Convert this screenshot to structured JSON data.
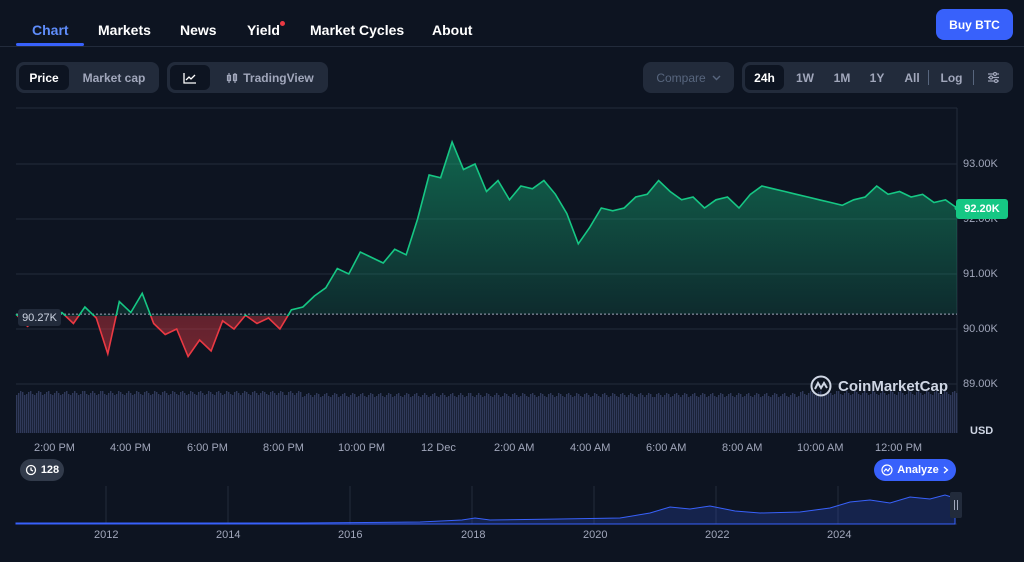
{
  "nav": {
    "tabs": [
      "Chart",
      "Markets",
      "News",
      "Yield",
      "Market Cycles",
      "About"
    ],
    "buy_label": "Buy BTC"
  },
  "toolbar": {
    "price_label": "Price",
    "marketcap_label": "Market cap",
    "tradingview_label": "TradingView",
    "compare_label": "Compare",
    "ranges": [
      "24h",
      "1W",
      "1M",
      "1Y",
      "All"
    ],
    "active_range": "24h",
    "log_label": "Log"
  },
  "chart": {
    "y_ticks": [
      "93.00K",
      "92.00K",
      "91.00K",
      "90.00K",
      "89.00K"
    ],
    "x_ticks": [
      "2:00 PM",
      "4:00 PM",
      "6:00 PM",
      "8:00 PM",
      "10:00 PM",
      "12 Dec",
      "2:00 AM",
      "4:00 AM",
      "6:00 AM",
      "8:00 AM",
      "10:00 AM",
      "12:00 PM"
    ],
    "current_price_label": "92.20K",
    "open_price_label": "90.27K",
    "currency_label": "USD",
    "watermark_label": "CoinMarketCap",
    "colors": {
      "up": "#16c784",
      "down": "#ea3943",
      "accent": "#3861fb"
    }
  },
  "footer": {
    "badge_count": "128",
    "analyze_label": "Analyze",
    "years": [
      "2012",
      "2014",
      "2016",
      "2018",
      "2020",
      "2022",
      "2024"
    ]
  },
  "chart_data": {
    "type": "line",
    "xlabel": "",
    "ylabel": "",
    "ylim": [
      88500,
      93900
    ],
    "baseline": 90270,
    "last": 92200,
    "x": [
      "1:00 PM",
      "1:25 PM",
      "1:50 PM",
      "2:15 PM",
      "2:40 PM",
      "3:05 PM",
      "3:30 PM",
      "3:50 PM",
      "4:05 PM",
      "4:20 PM",
      "4:35 PM",
      "4:50 PM",
      "5:05 PM",
      "5:20 PM",
      "5:35 PM",
      "5:50 PM",
      "6:05 PM",
      "6:20 PM",
      "6:40 PM",
      "7:00 PM",
      "7:15 PM",
      "7:30 PM",
      "7:45 PM",
      "8:00 PM",
      "8:15 PM",
      "8:30 PM",
      "8:45 PM",
      "9:00 PM",
      "9:15 PM",
      "9:30 PM",
      "9:45 PM",
      "10:00 PM",
      "10:15 PM",
      "10:30 PM",
      "10:45 PM",
      "11:00 PM",
      "11:15 PM",
      "11:30 PM",
      "11:45 PM",
      "12:00 AM",
      "12:15 AM",
      "12:30 AM",
      "12:45 AM",
      "1:00 AM",
      "1:15 AM",
      "1:30 AM",
      "1:45 AM",
      "2:00 AM",
      "2:15 AM",
      "2:30 AM",
      "2:45 AM",
      "3:00 AM",
      "3:20 AM",
      "3:40 AM",
      "4:00 AM",
      "4:20 AM",
      "4:40 AM",
      "5:00 AM",
      "5:20 AM",
      "5:40 AM",
      "6:00 AM",
      "6:20 AM",
      "6:40 AM",
      "7:00 AM",
      "7:20 AM",
      "7:40 AM",
      "8:00 AM",
      "8:20 AM",
      "8:40 AM",
      "9:00 AM",
      "9:20 AM",
      "9:40 AM",
      "10:00 AM",
      "10:20 AM",
      "10:40 AM",
      "11:00 AM",
      "11:20 AM",
      "11:40 AM",
      "12:00 PM",
      "12:20 PM",
      "12:40 PM",
      "1:00 PM",
      "1:15 PM"
    ],
    "series": [
      {
        "values": [
          90270,
          90050,
          90200,
          90150,
          90300,
          90100,
          90400,
          90200,
          89550,
          90500,
          90300,
          90650,
          90100,
          89900,
          90000,
          89500,
          89800,
          89600,
          90150,
          90000,
          90250,
          90100,
          90200,
          90000,
          90350,
          90400,
          90600,
          90750,
          91100,
          91000,
          91400,
          91300,
          91200,
          91450,
          91350,
          92000,
          92800,
          92750,
          93400,
          92900,
          93000,
          92500,
          92700,
          92350,
          92600,
          92550,
          92700,
          92450,
          92100,
          91550,
          91850,
          92200,
          92150,
          92200,
          92400,
          92450,
          92700,
          92500,
          92350,
          92400,
          92200,
          92350,
          92400,
          92200,
          92450,
          92600,
          92550,
          92500,
          92450,
          92400,
          92350,
          92300,
          92250,
          92350,
          92400,
          92600,
          92450,
          92500,
          92400,
          92450,
          92300,
          92350,
          92200
        ]
      }
    ]
  }
}
